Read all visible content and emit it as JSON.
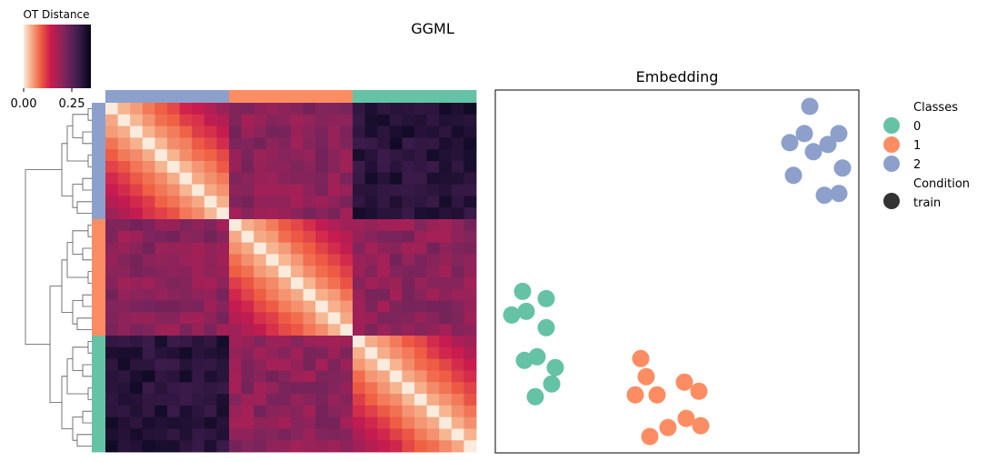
{
  "figure_title": "GGML",
  "colorbar": {
    "label": "OT Distance",
    "ticks": [
      "0.00",
      "0.25"
    ],
    "tick_values": [
      0.0,
      0.25
    ],
    "range": [
      0.0,
      0.35
    ],
    "colormap": "rocket_r"
  },
  "class_colors": {
    "0": "#66c2a5",
    "1": "#fc8d62",
    "2": "#8da0cb"
  },
  "condition_color": "#333333",
  "chart_data": [
    {
      "type": "heatmap",
      "title": "",
      "row_order_classes": [
        2,
        1,
        0
      ],
      "col_order_classes": [
        2,
        1,
        0
      ],
      "samples_per_class": 10,
      "block_mean_distance": [
        [
          0.1,
          0.2,
          0.31
        ],
        [
          0.2,
          0.1,
          0.2
        ],
        [
          0.31,
          0.2,
          0.1
        ]
      ],
      "diagonal_value": 0.0,
      "dendrogram": "rows",
      "colorbar_label": "OT Distance"
    },
    {
      "type": "scatter",
      "title": "Embedding",
      "xlabel": "",
      "ylabel": "",
      "axis_ticks": false,
      "xlim": [
        0,
        100
      ],
      "ylim": [
        0,
        100
      ],
      "series": [
        {
          "name": "0",
          "points": [
            [
              7.5,
              44.5
            ],
            [
              14,
              42.5
            ],
            [
              8.5,
              39
            ],
            [
              4.5,
              38
            ],
            [
              14,
              34.5
            ],
            [
              11.5,
              26.5
            ],
            [
              8,
              25.5
            ],
            [
              16.5,
              23.5
            ],
            [
              15.5,
              19
            ],
            [
              11,
              15.5
            ]
          ]
        },
        {
          "name": "1",
          "points": [
            [
              40,
              26
            ],
            [
              41.5,
              21
            ],
            [
              52,
              19.5
            ],
            [
              56,
              17
            ],
            [
              38.5,
              16
            ],
            [
              44.5,
              16
            ],
            [
              52.5,
              9.5
            ],
            [
              56.5,
              7.5
            ],
            [
              47.5,
              7
            ],
            [
              42.5,
              4.5
            ]
          ]
        },
        {
          "name": "2",
          "points": [
            [
              86.5,
              95.5
            ],
            [
              94.5,
              88
            ],
            [
              85,
              88
            ],
            [
              81,
              85.5
            ],
            [
              91.5,
              85
            ],
            [
              87.5,
              83
            ],
            [
              95.5,
              78.5
            ],
            [
              82,
              76.5
            ],
            [
              94.5,
              71.5
            ],
            [
              90.5,
              71
            ]
          ]
        }
      ],
      "legend": {
        "placement": "outside-right",
        "sections": [
          {
            "title": "Classes",
            "entries": [
              "0",
              "1",
              "2"
            ]
          },
          {
            "title": "Condition",
            "entries": [
              "train"
            ]
          }
        ]
      }
    }
  ]
}
